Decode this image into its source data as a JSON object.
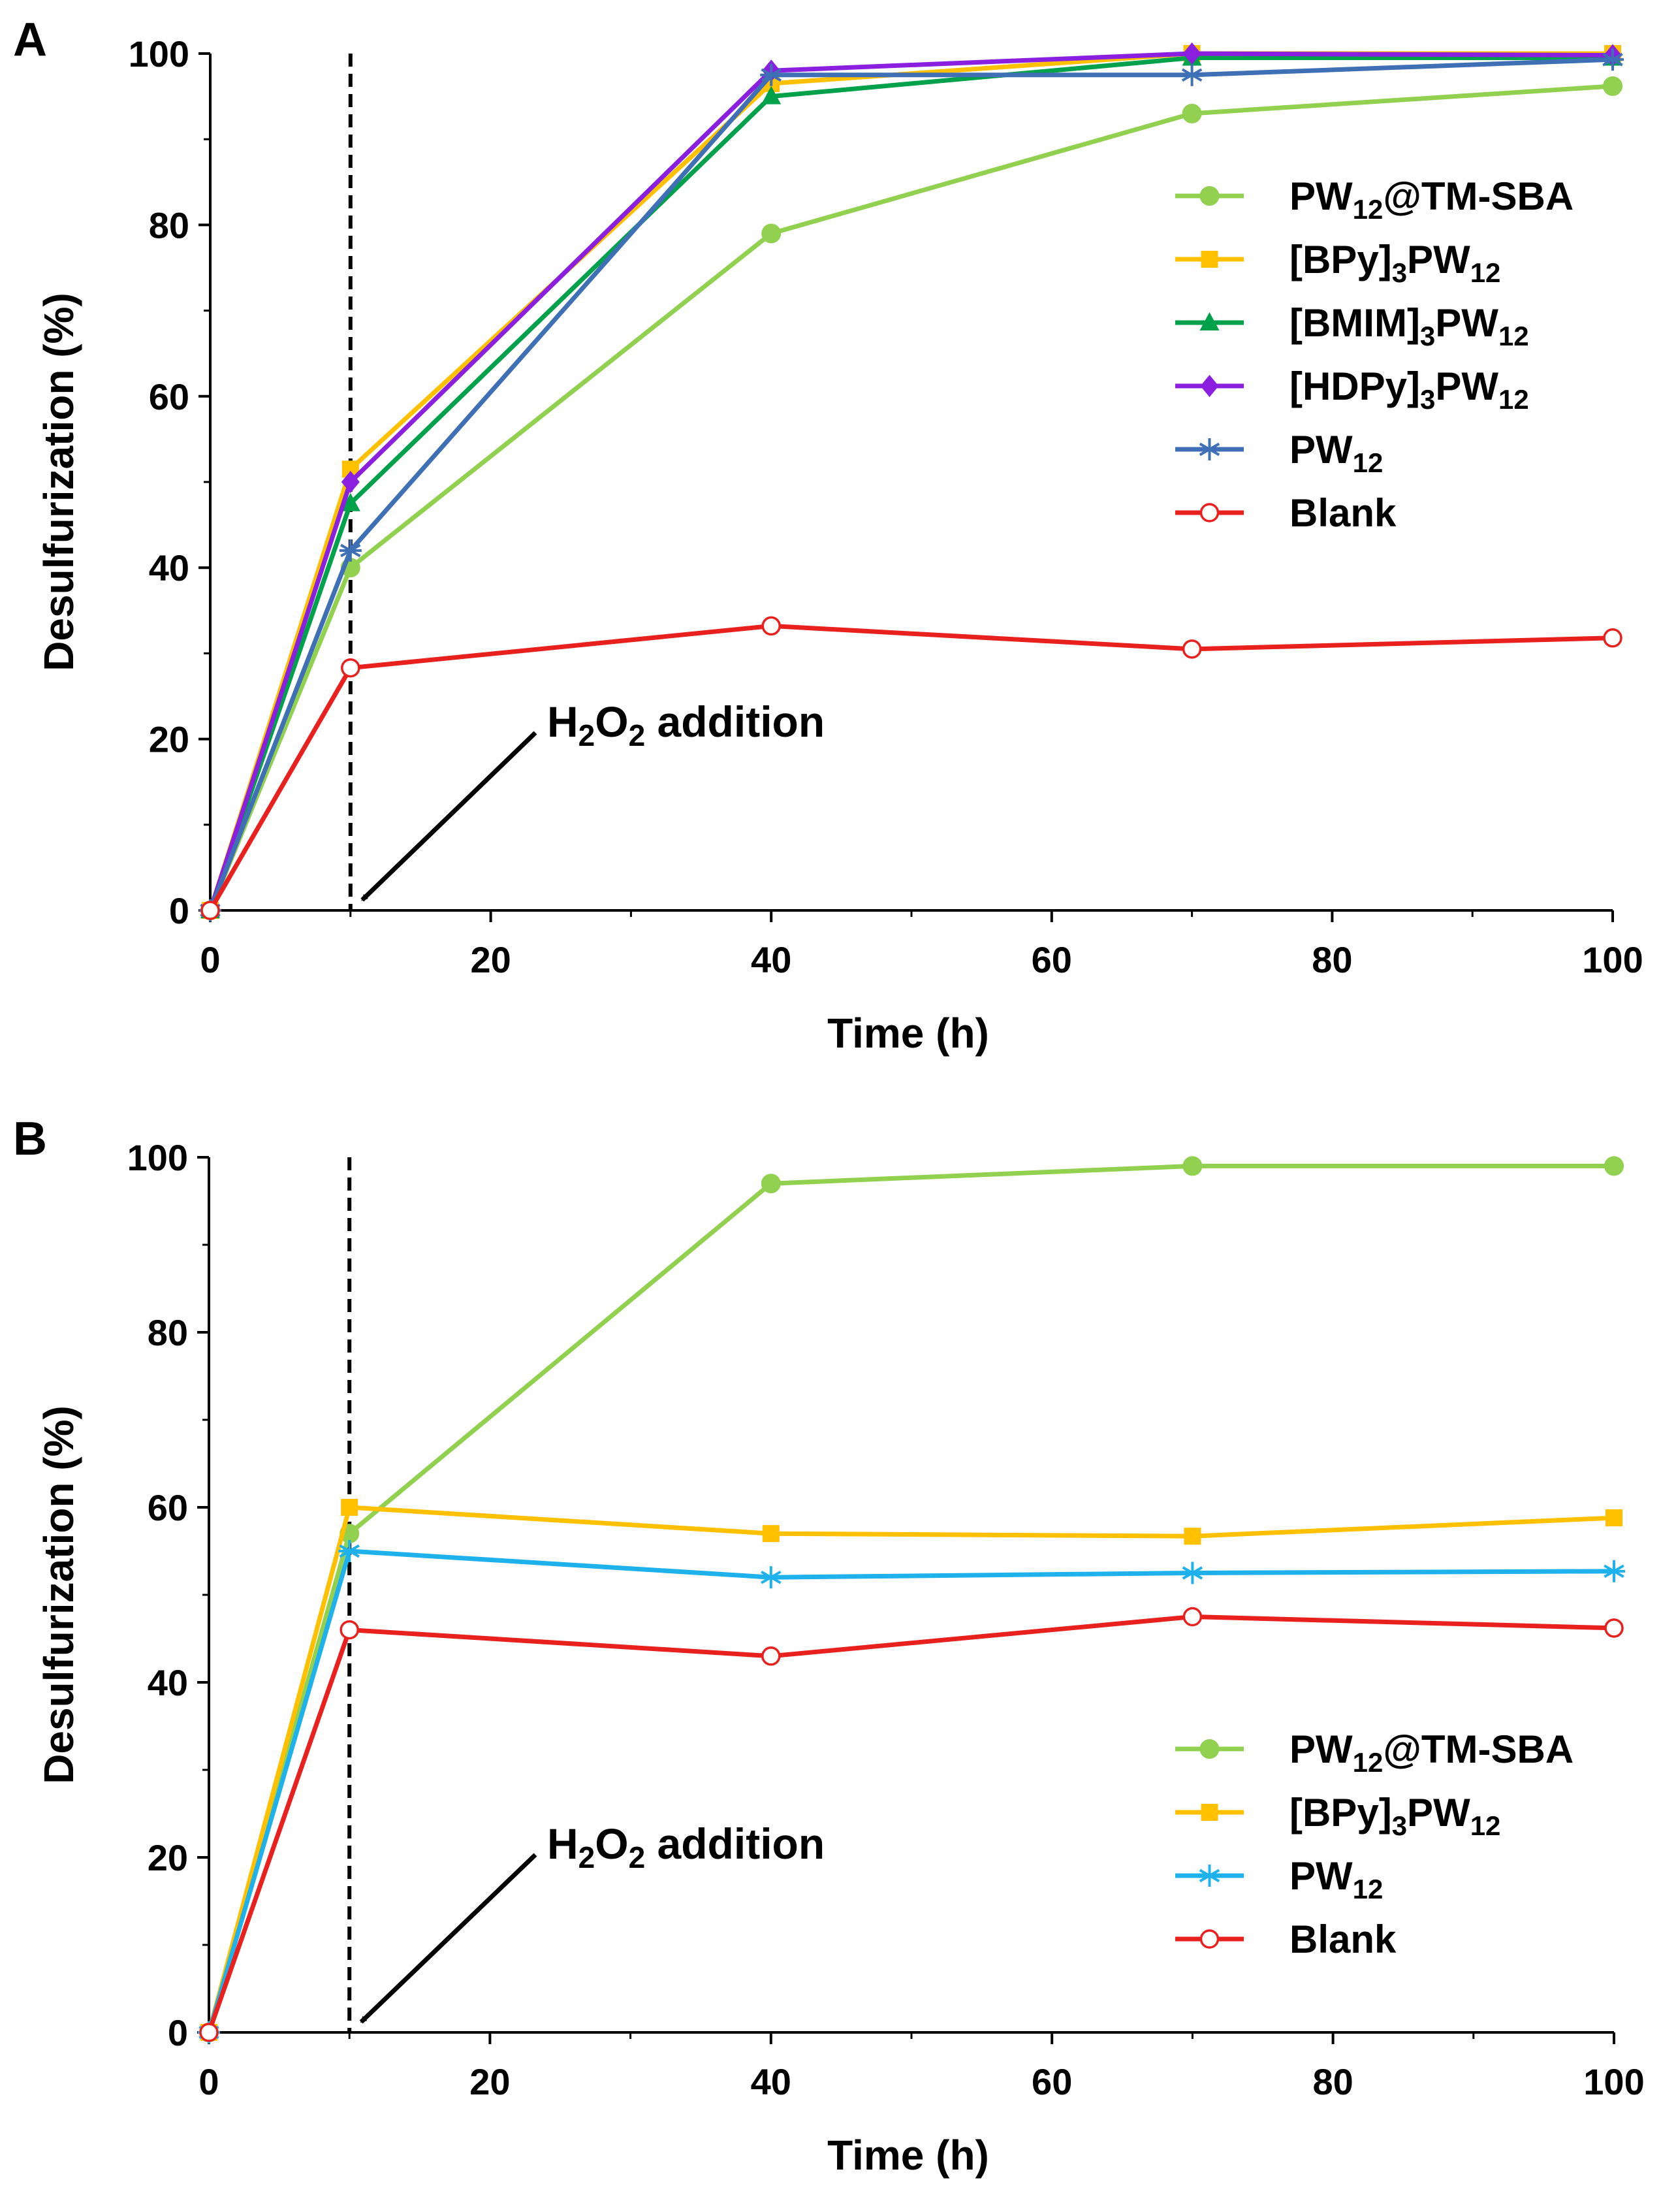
{
  "chart_data": [
    {
      "type": "line",
      "panel_label": "A",
      "xlabel": "Time (h)",
      "ylabel": "Desulfurization (%)",
      "xlim": [
        0,
        100
      ],
      "ylim": [
        0,
        100
      ],
      "x_ticks": [
        0,
        20,
        40,
        60,
        80,
        100
      ],
      "y_ticks": [
        0,
        20,
        40,
        60,
        80,
        100
      ],
      "grid": false,
      "legend_position": "center-right",
      "marker_line_time": 10,
      "annotation": {
        "prefix": "H",
        "sub1": "2",
        "mid": "O",
        "sub2": "2",
        "suffix": " addition",
        "points_to": [
          10,
          0
        ]
      },
      "x": [
        0,
        10,
        40,
        70,
        100
      ],
      "series": [
        {
          "name": "PW12@TM-SBA",
          "legend": {
            "a": "PW",
            "sub": "12",
            "b": "@TM-SBA"
          },
          "color": "#92d050",
          "marker": "circle",
          "values": [
            0,
            40,
            79,
            93,
            96.2
          ]
        },
        {
          "name": "[BPy]3PW12",
          "legend": {
            "a": "[BPy]",
            "sub": "3",
            "b": "PW",
            "sub2": "12"
          },
          "color": "#ffc000",
          "marker": "square",
          "values": [
            0,
            51.5,
            96.5,
            100,
            100
          ]
        },
        {
          "name": "[BMIM]3PW12",
          "legend": {
            "a": "[BMIM]",
            "sub": "3",
            "b": "PW",
            "sub2": "12"
          },
          "color": "#00a14b",
          "marker": "triangle",
          "values": [
            0,
            47.5,
            95,
            99.5,
            99.5
          ]
        },
        {
          "name": "[HDPy]3PW12",
          "legend": {
            "a": "[HDPy]",
            "sub": "3",
            "b": "PW",
            "sub2": "12"
          },
          "color": "#8b1fe0",
          "marker": "diamond",
          "values": [
            0,
            50,
            98,
            100,
            99.8
          ]
        },
        {
          "name": "PW12",
          "legend": {
            "a": "PW",
            "sub": "12"
          },
          "color": "#3f6fb5",
          "marker": "asterisk",
          "values": [
            0,
            42,
            97.5,
            97.5,
            99.3
          ]
        },
        {
          "name": "Blank",
          "legend": {
            "a": "Blank"
          },
          "color": "#e8201e",
          "marker": "open-circle",
          "values": [
            0,
            28.3,
            33.2,
            30.5,
            31.8
          ]
        }
      ]
    },
    {
      "type": "line",
      "panel_label": "B",
      "xlabel": "Time (h)",
      "ylabel": "Desulfurization (%)",
      "xlim": [
        0,
        100
      ],
      "ylim": [
        0,
        100
      ],
      "x_ticks": [
        0,
        20,
        40,
        60,
        80,
        100
      ],
      "y_ticks": [
        0,
        20,
        40,
        60,
        80,
        100
      ],
      "grid": false,
      "legend_position": "bottom-right",
      "marker_line_time": 10,
      "annotation": {
        "prefix": "H",
        "sub1": "2",
        "mid": "O",
        "sub2": "2",
        "suffix": " addition",
        "points_to": [
          10,
          0
        ]
      },
      "x": [
        0,
        10,
        40,
        70,
        100
      ],
      "series": [
        {
          "name": "PW12@TM-SBA",
          "legend": {
            "a": "PW",
            "sub": "12",
            "b": "@TM-SBA"
          },
          "color": "#92d050",
          "marker": "circle",
          "values": [
            0,
            57,
            97,
            99,
            99
          ]
        },
        {
          "name": "[BPy]3PW12",
          "legend": {
            "a": "[BPy]",
            "sub": "3",
            "b": "PW",
            "sub2": "12"
          },
          "color": "#ffc000",
          "marker": "square",
          "values": [
            0,
            60,
            57,
            56.7,
            58.8
          ]
        },
        {
          "name": "PW12",
          "legend": {
            "a": "PW",
            "sub": "12"
          },
          "color": "#1fb1ec",
          "marker": "asterisk",
          "values": [
            0,
            55,
            52,
            52.5,
            52.7
          ]
        },
        {
          "name": "Blank",
          "legend": {
            "a": "Blank"
          },
          "color": "#e8201e",
          "marker": "open-circle",
          "values": [
            0,
            46,
            43,
            47.5,
            46.2
          ]
        }
      ]
    }
  ]
}
